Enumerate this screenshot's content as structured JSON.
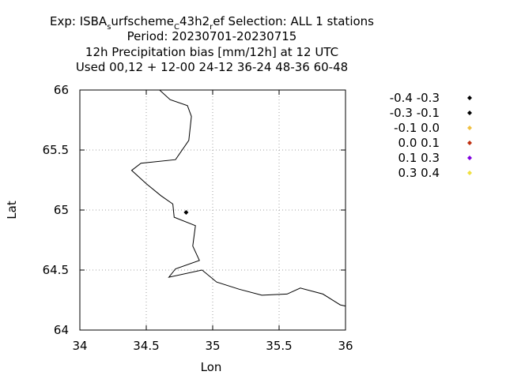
{
  "chart_data": {
    "type": "scatter",
    "title_lines": [
      {
        "parts": [
          {
            "t": "Exp: ISBA"
          },
          {
            "t": "s",
            "sub": true
          },
          {
            "t": "urfscheme"
          },
          {
            "t": "C",
            "sub": true
          },
          {
            "t": "43h2"
          },
          {
            "t": "r",
            "sub": true
          },
          {
            "t": "ef   Selection: ALL       1 stations"
          }
        ]
      },
      {
        "text": "Period: 20230701-20230715"
      },
      {
        "text": "12h Precipitation bias [mm/12h] at  12 UTC"
      },
      {
        "text": "Used  00,12  + 12-00 24-12 36-24 48-36 60-48"
      }
    ],
    "xlabel": "Lon",
    "ylabel": "Lat",
    "xlim": [
      34,
      36
    ],
    "ylim": [
      64,
      66
    ],
    "xticks": [
      {
        "v": 34,
        "label": "34"
      },
      {
        "v": 34.5,
        "label": "34.5"
      },
      {
        "v": 35,
        "label": "35"
      },
      {
        "v": 35.5,
        "label": "35.5"
      },
      {
        "v": 36,
        "label": "36"
      }
    ],
    "yticks": [
      {
        "v": 64,
        "label": "64"
      },
      {
        "v": 64.5,
        "label": "64.5"
      },
      {
        "v": 65,
        "label": "65"
      },
      {
        "v": 65.5,
        "label": "65.5"
      },
      {
        "v": 66,
        "label": "66"
      }
    ],
    "grid": true,
    "legend": [
      {
        "label": "-0.4 -0.3",
        "color": "#000000"
      },
      {
        "label": "-0.3 -0.1",
        "color": "#000000"
      },
      {
        "label": "-0.1 0.0",
        "color": "#f0c040"
      },
      {
        "label": "0.0 0.1",
        "color": "#c03010"
      },
      {
        "label": "0.1 0.3",
        "color": "#8000e0"
      },
      {
        "label": "0.3 0.4",
        "color": "#f0e040"
      }
    ],
    "points": [
      {
        "lon": 34.8,
        "lat": 64.98,
        "color": "#000000"
      }
    ],
    "coastline": [
      [
        34.6,
        66.0
      ],
      [
        34.68,
        65.92
      ],
      [
        34.81,
        65.87
      ],
      [
        34.84,
        65.78
      ],
      [
        34.82,
        65.58
      ],
      [
        34.72,
        65.42
      ],
      [
        34.46,
        65.39
      ],
      [
        34.39,
        65.33
      ],
      [
        34.5,
        65.22
      ],
      [
        34.61,
        65.12
      ],
      [
        34.7,
        65.05
      ],
      [
        34.71,
        64.94
      ],
      [
        34.87,
        64.87
      ],
      [
        34.85,
        64.7
      ],
      [
        34.9,
        64.58
      ],
      [
        34.72,
        64.51
      ],
      [
        34.67,
        64.44
      ],
      [
        34.92,
        64.5
      ],
      [
        35.03,
        64.4
      ],
      [
        35.2,
        64.34
      ],
      [
        35.37,
        64.29
      ],
      [
        35.56,
        64.3
      ],
      [
        35.66,
        64.35
      ],
      [
        35.83,
        64.3
      ],
      [
        35.96,
        64.21
      ],
      [
        36.0,
        64.2
      ]
    ]
  }
}
